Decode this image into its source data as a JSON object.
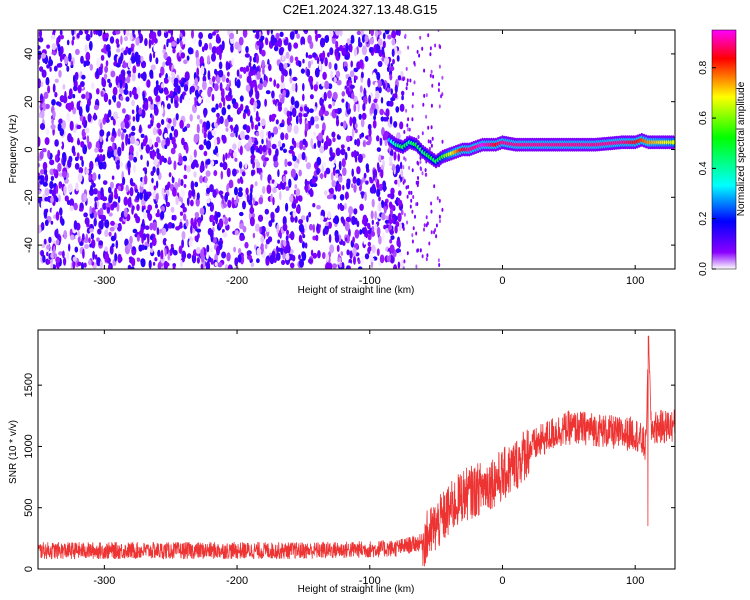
{
  "title": "C2E1.2024.327.13.48.G15",
  "chart_data": [
    {
      "type": "heatmap",
      "xlabel": "Height of straight line (km)",
      "ylabel": "Frequency (Hz)",
      "xlim": [
        -350,
        130
      ],
      "ylim": [
        -50,
        50
      ],
      "xticks": [
        -300,
        -200,
        -100,
        0,
        100
      ],
      "yticks": [
        -40,
        -20,
        0,
        20,
        40
      ],
      "grid": false,
      "colorbar": {
        "label": "Normalized spectral amplitude",
        "range": [
          0,
          0.95
        ],
        "ticks": [
          0.0,
          0.2,
          0.4,
          0.6,
          0.8
        ],
        "colors": [
          "#ffffff",
          "#8a00ff",
          "#0000ff",
          "#00ffff",
          "#00ff00",
          "#ffff00",
          "#ff0000",
          "#ff00ff"
        ]
      },
      "noise_region": {
        "x": [
          -350,
          -75
        ],
        "y": [
          -50,
          50
        ],
        "amplitude": 0.1
      },
      "ridge": {
        "x": [
          -85,
          -80,
          -75,
          -70,
          -65,
          -60,
          -55,
          -50,
          -45,
          -40,
          -35,
          -30,
          -25,
          -20,
          -15,
          -10,
          -5,
          0,
          10,
          20,
          30,
          40,
          50,
          60,
          70,
          80,
          90,
          100,
          105,
          110,
          120,
          130
        ],
        "y": [
          4,
          2,
          1,
          3,
          2,
          -1,
          -3,
          -5,
          -3,
          -2,
          -1,
          0,
          0,
          1,
          2,
          2,
          2,
          3,
          2,
          2,
          2,
          2,
          2,
          2,
          2,
          2.5,
          3,
          3,
          4,
          3,
          3,
          3
        ],
        "amplitude": [
          0.3,
          0.4,
          0.5,
          0.4,
          0.5,
          0.45,
          0.5,
          0.45,
          0.55,
          0.65,
          0.75,
          0.85,
          0.9,
          0.9,
          0.95,
          0.9,
          0.85,
          0.9,
          0.9,
          0.9,
          0.9,
          0.9,
          0.9,
          0.9,
          0.9,
          0.9,
          0.9,
          0.85,
          0.8,
          0.75,
          0.7,
          0.65
        ]
      }
    },
    {
      "type": "line",
      "xlabel": "Height of straight line (km)",
      "ylabel": "SNR (10 * v/v)",
      "xlim": [
        -350,
        130
      ],
      "ylim": [
        0,
        1950
      ],
      "xticks": [
        -300,
        -200,
        -100,
        0,
        100
      ],
      "yticks": [
        0,
        500,
        1000,
        1500
      ],
      "grid": false,
      "series": [
        {
          "color": "#ee3333",
          "x": [
            -350,
            -300,
            -250,
            -200,
            -150,
            -100,
            -80,
            -60,
            -50,
            -40,
            -30,
            -20,
            -10,
            0,
            10,
            20,
            30,
            40,
            50,
            60,
            70,
            80,
            90,
            100,
            108,
            110,
            112,
            120,
            130
          ],
          "y": [
            150,
            150,
            150,
            150,
            150,
            160,
            170,
            220,
            350,
            480,
            600,
            640,
            700,
            760,
            850,
            980,
            1050,
            1120,
            1150,
            1150,
            1140,
            1120,
            1100,
            1110,
            1000,
            1900,
            1150,
            1160,
            1170
          ]
        }
      ]
    }
  ]
}
